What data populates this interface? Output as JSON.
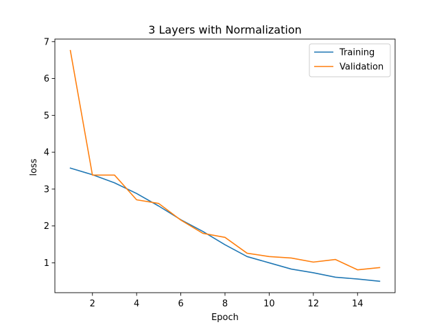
{
  "chart_data": {
    "type": "line",
    "title": "3 Layers with Normalization",
    "xlabel": "Epoch",
    "ylabel": "loss",
    "x": [
      1,
      2,
      3,
      4,
      5,
      6,
      7,
      8,
      9,
      10,
      11,
      12,
      13,
      14,
      15
    ],
    "series": [
      {
        "name": "Training",
        "color": "#1f77b4",
        "values": [
          3.57,
          3.39,
          3.17,
          2.88,
          2.54,
          2.17,
          1.85,
          1.49,
          1.17,
          1.0,
          0.83,
          0.73,
          0.61,
          0.56,
          0.5
        ]
      },
      {
        "name": "Validation",
        "color": "#ff7f0e",
        "values": [
          6.76,
          3.38,
          3.38,
          2.71,
          2.61,
          2.16,
          1.8,
          1.69,
          1.26,
          1.17,
          1.13,
          1.02,
          1.09,
          0.81,
          0.87
        ]
      }
    ],
    "xlim": [
      0.3,
      15.7
    ],
    "ylim": [
      0.19,
      7.07
    ],
    "xticks": [
      2,
      4,
      6,
      8,
      10,
      12,
      14
    ],
    "yticks": [
      1,
      2,
      3,
      4,
      5,
      6,
      7
    ],
    "grid": false,
    "legend_position": "top-right"
  }
}
